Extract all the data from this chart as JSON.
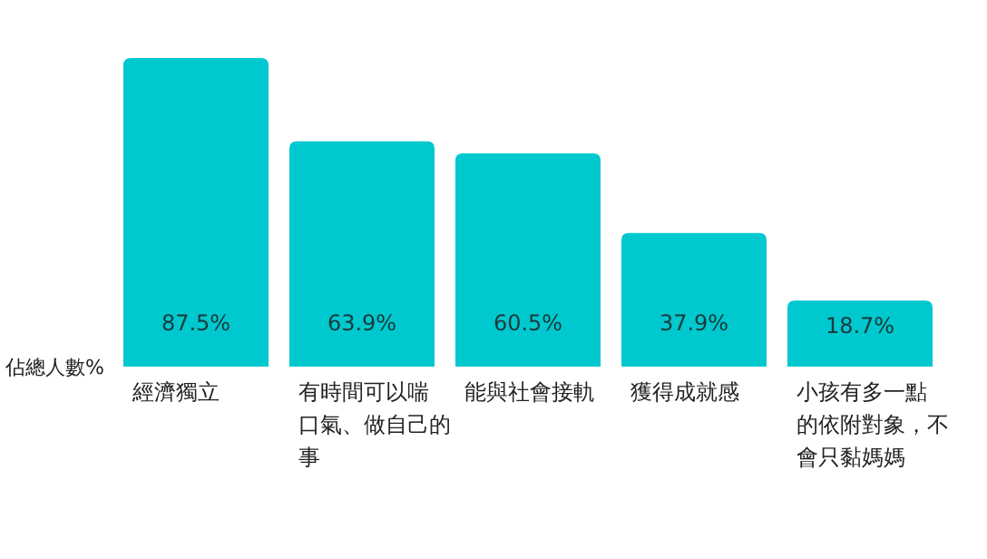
{
  "chart_data": {
    "type": "bar",
    "ylabel": "佔總人數%",
    "categories": [
      "經濟獨立",
      "有時間可以喘口氣、做自己的事",
      "能與社會接軌",
      "獲得成就感",
      "小孩有多一點的依附對象，不會只黏媽媽"
    ],
    "values": [
      87.5,
      63.9,
      60.5,
      37.9,
      18.7
    ],
    "value_labels": [
      "87.5%",
      "63.9%",
      "60.5%",
      "37.9%",
      "18.7%"
    ],
    "color": "#00c8cf"
  }
}
